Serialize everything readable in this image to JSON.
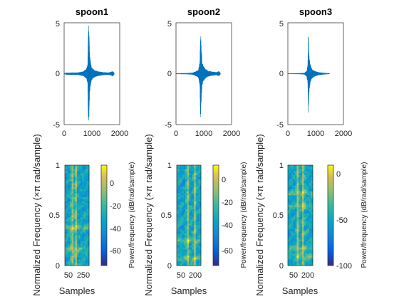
{
  "chart_data": [
    {
      "type": "line",
      "title": "spoon1",
      "xlim": [
        0,
        2000
      ],
      "ylim": [
        -5,
        5
      ],
      "xticks": [
        "0",
        "1000",
        "2000"
      ],
      "yticks": [
        "-5",
        "0",
        "5"
      ],
      "series": [
        {
          "color": "#0072BD",
          "envelope_x": [
            0,
            100,
            300,
            500,
            700,
            800,
            850,
            870,
            890,
            920,
            960,
            1000,
            1100,
            1200,
            1400,
            1600,
            1750,
            1800
          ],
          "envelope_y": [
            0.06,
            0.1,
            0.12,
            0.12,
            0.25,
            0.5,
            1.0,
            4.6,
            5.0,
            2.0,
            1.0,
            0.6,
            0.35,
            0.25,
            0.15,
            0.12,
            0.25,
            0.1
          ]
        }
      ]
    },
    {
      "type": "line",
      "title": "spoon2",
      "xlim": [
        0,
        2000
      ],
      "ylim": [
        -5,
        5
      ],
      "xticks": [
        "0",
        "1000",
        "2000"
      ],
      "yticks": [
        "-5",
        "0",
        "5"
      ],
      "series": [
        {
          "color": "#0072BD",
          "envelope_x": [
            0,
            200,
            400,
            600,
            800,
            860,
            880,
            900,
            940,
            980,
            1050,
            1150,
            1300,
            1450,
            1550,
            1600
          ],
          "envelope_y": [
            0.04,
            0.05,
            0.06,
            0.1,
            0.35,
            1.2,
            5.0,
            3.5,
            1.2,
            0.8,
            0.5,
            0.3,
            0.2,
            0.15,
            0.25,
            0.05
          ]
        }
      ]
    },
    {
      "type": "line",
      "title": "spoon3",
      "xlim": [
        0,
        2000
      ],
      "ylim": [
        -5,
        5
      ],
      "xticks": [
        "0",
        "1000",
        "2000"
      ],
      "yticks": [
        "-5",
        "0",
        "5"
      ],
      "series": [
        {
          "color": "#0072BD",
          "envelope_x": [
            0,
            200,
            400,
            600,
            680,
            720,
            740,
            760,
            800,
            860,
            950,
            1100,
            1300,
            1500
          ],
          "envelope_y": [
            0.03,
            0.04,
            0.05,
            0.08,
            0.3,
            1.0,
            4.6,
            2.0,
            1.0,
            0.5,
            0.3,
            0.15,
            0.08,
            0.04
          ]
        }
      ]
    },
    {
      "type": "heatmap",
      "xlabel": "Samples",
      "ylabel": "Normalized Frequency  (×π rad/sample)",
      "xticks": [
        "50",
        "250"
      ],
      "yticks": [
        "0",
        "0.5",
        "1"
      ],
      "colorbar": {
        "label": "Power/frequency (dB/rad/sample)",
        "ticks": [
          "0",
          "-20",
          "-40",
          "-60"
        ],
        "range": [
          -75,
          10
        ]
      },
      "bright_columns": [
        0.3,
        0.45
      ],
      "bright_rows": [
        0.62,
        0.84
      ]
    },
    {
      "type": "heatmap",
      "xlabel": "Samples",
      "ylabel": "Normalized Frequency  (×π rad/sample)",
      "xticks": [
        "50",
        "200"
      ],
      "yticks": [
        "0",
        "0.5",
        "1"
      ],
      "colorbar": {
        "label": "Power/frequency (dB/rad/sample)",
        "ticks": [
          "0",
          "-20",
          "-40",
          "-60"
        ],
        "range": [
          -75,
          10
        ]
      },
      "bright_columns": [
        0.45,
        0.75
      ],
      "bright_rows": [
        0.93,
        0.75
      ]
    },
    {
      "type": "heatmap",
      "xlabel": "Samples",
      "ylabel": "Normalized Frequency  (×π rad/sample)",
      "xticks": [
        "50",
        "200"
      ],
      "yticks": [
        "0",
        "0.5",
        "1"
      ],
      "colorbar": {
        "label": "Power/frequency (dB/rad/sample)",
        "ticks": [
          "0",
          "-50",
          "-100"
        ],
        "range": [
          -105,
          10
        ]
      },
      "bright_columns": [
        0.4,
        0.62
      ],
      "bright_rows": [
        0.28,
        0.41,
        0.83,
        0.91
      ]
    }
  ]
}
